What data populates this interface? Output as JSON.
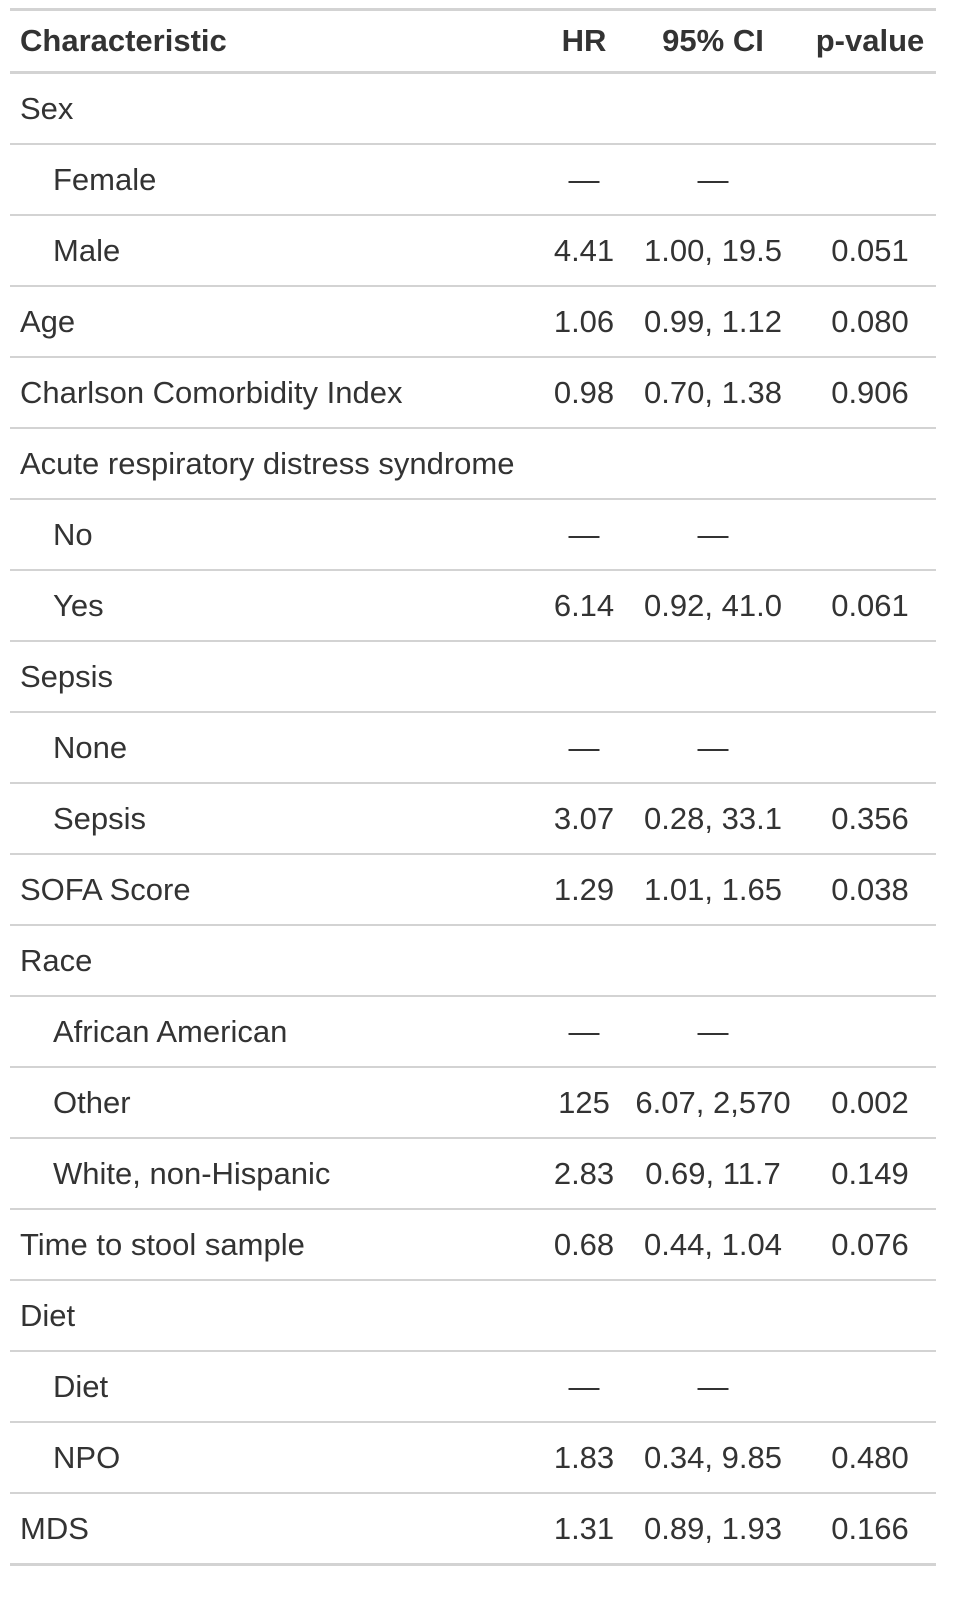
{
  "headers": {
    "characteristic": "Characteristic",
    "hr": "HR",
    "ci": "95% CI",
    "p": "p-value"
  },
  "rows": [
    {
      "label": "Sex",
      "indent": false,
      "hr": "",
      "ci": "",
      "p": ""
    },
    {
      "label": "Female",
      "indent": true,
      "hr": "—",
      "ci": "—",
      "p": ""
    },
    {
      "label": "Male",
      "indent": true,
      "hr": "4.41",
      "ci": "1.00, 19.5",
      "p": "0.051"
    },
    {
      "label": "Age",
      "indent": false,
      "hr": "1.06",
      "ci": "0.99, 1.12",
      "p": "0.080"
    },
    {
      "label": "Charlson Comorbidity Index",
      "indent": false,
      "hr": "0.98",
      "ci": "0.70, 1.38",
      "p": "0.906"
    },
    {
      "label": "Acute respiratory distress syndrome",
      "indent": false,
      "hr": "",
      "ci": "",
      "p": ""
    },
    {
      "label": "No",
      "indent": true,
      "hr": "—",
      "ci": "—",
      "p": ""
    },
    {
      "label": "Yes",
      "indent": true,
      "hr": "6.14",
      "ci": "0.92, 41.0",
      "p": "0.061"
    },
    {
      "label": "Sepsis",
      "indent": false,
      "hr": "",
      "ci": "",
      "p": ""
    },
    {
      "label": "None",
      "indent": true,
      "hr": "—",
      "ci": "—",
      "p": ""
    },
    {
      "label": "Sepsis",
      "indent": true,
      "hr": "3.07",
      "ci": "0.28, 33.1",
      "p": "0.356"
    },
    {
      "label": "SOFA Score",
      "indent": false,
      "hr": "1.29",
      "ci": "1.01, 1.65",
      "p": "0.038"
    },
    {
      "label": "Race",
      "indent": false,
      "hr": "",
      "ci": "",
      "p": ""
    },
    {
      "label": "African American",
      "indent": true,
      "hr": "—",
      "ci": "—",
      "p": ""
    },
    {
      "label": "Other",
      "indent": true,
      "hr": "125",
      "ci": "6.07, 2,570",
      "p": "0.002"
    },
    {
      "label": "White, non-Hispanic",
      "indent": true,
      "hr": "2.83",
      "ci": "0.69, 11.7",
      "p": "0.149"
    },
    {
      "label": "Time to stool sample",
      "indent": false,
      "hr": "0.68",
      "ci": "0.44, 1.04",
      "p": "0.076"
    },
    {
      "label": "Diet",
      "indent": false,
      "hr": "",
      "ci": "",
      "p": ""
    },
    {
      "label": "Diet",
      "indent": true,
      "hr": "—",
      "ci": "—",
      "p": ""
    },
    {
      "label": "NPO",
      "indent": true,
      "hr": "1.83",
      "ci": "0.34, 9.85",
      "p": "0.480"
    },
    {
      "label": "MDS",
      "indent": false,
      "hr": "1.31",
      "ci": "0.89, 1.93",
      "p": "0.166"
    }
  ]
}
